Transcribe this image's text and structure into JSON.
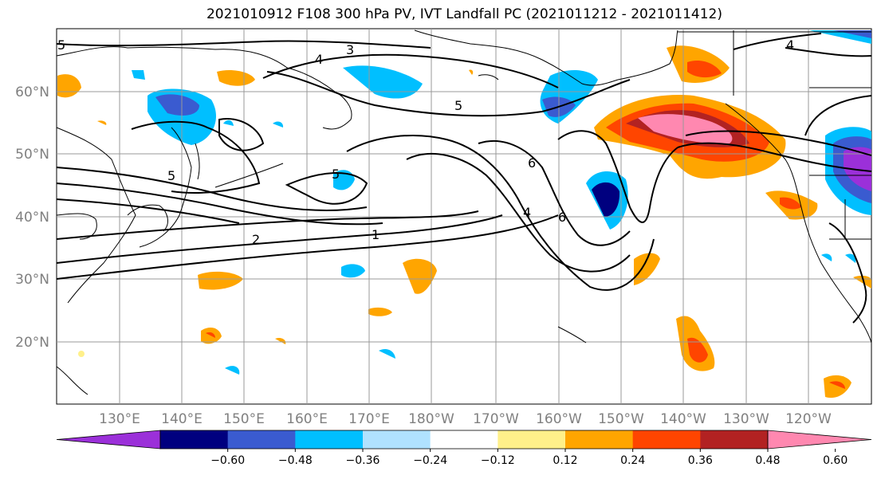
{
  "title": "2021010912 F108 300 hPa PV, IVT Landfall PC (2021011212 - 2021011412)",
  "lat_labels": [
    "60°N",
    "50°N",
    "40°N",
    "30°N",
    "20°N"
  ],
  "lon_labels": [
    "130°E",
    "140°E",
    "150°E",
    "160°E",
    "170°E",
    "180°W",
    "170°W",
    "160°W",
    "150°W",
    "140°W",
    "130°W",
    "120°W"
  ],
  "colorbar": {
    "colors": [
      "#9b30d9",
      "#00007f",
      "#3a5bd0",
      "#00bfff",
      "#b0e2ff",
      "#ffffff",
      "#fff08a",
      "#ffa500",
      "#ff4500",
      "#b22222",
      "#ff88b0"
    ],
    "labels": [
      "−0.60",
      "−0.48",
      "−0.36",
      "−0.24",
      "−0.12",
      "0.12",
      "0.24",
      "0.36",
      "0.48",
      "0.60"
    ]
  },
  "contour_labels": [
    "5",
    "4",
    "3",
    "5",
    "5",
    "6",
    "4",
    "6",
    "2",
    "1",
    "4",
    "5"
  ]
}
